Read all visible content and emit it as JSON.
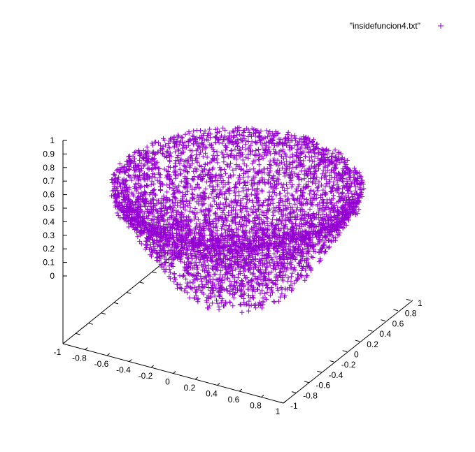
{
  "chart_data": {
    "type": "scatter",
    "title": "",
    "plot_kind": "3d-scatter",
    "marker": "+",
    "series": [
      {
        "name": "\"insidefuncion4.txt\"",
        "color": "#9400d3",
        "description_shape": "solid filled by the points: z in [0.1, 1] over the unit disk region (x^2 + y^2 <= 1)",
        "sample_points": [
          {
            "x": 0.0,
            "y": 0.0,
            "z": 0.15
          },
          {
            "x": 0.5,
            "y": 0.5,
            "z": 0.6
          },
          {
            "x": -0.7,
            "y": 0.4,
            "z": 0.9
          },
          {
            "x": 0.8,
            "y": -0.3,
            "z": 0.95
          },
          {
            "x": -0.4,
            "y": -0.6,
            "z": 0.75
          }
        ]
      }
    ],
    "x_axis": {
      "range": [
        -1,
        1
      ],
      "ticks": [
        "-1",
        "-0.8",
        "-0.6",
        "-0.4",
        "-0.2",
        "0",
        "0.2",
        "0.4",
        "0.6",
        "0.8",
        "1"
      ]
    },
    "y_axis": {
      "range": [
        -1,
        1
      ],
      "ticks": [
        "-1",
        "-0.8",
        "-0.6",
        "-0.4",
        "-0.2",
        "0",
        "0.2",
        "0.4",
        "0.6",
        "0.8",
        "1"
      ]
    },
    "z_axis": {
      "range": [
        0,
        1
      ],
      "ticks": [
        "0",
        "0.1",
        "0.2",
        "0.3",
        "0.4",
        "0.5",
        "0.6",
        "0.7",
        "0.8",
        "0.9",
        "1"
      ]
    },
    "legend": {
      "position": "top-right",
      "entries": [
        "\"insidefuncion4.txt\""
      ]
    },
    "grid": false
  }
}
